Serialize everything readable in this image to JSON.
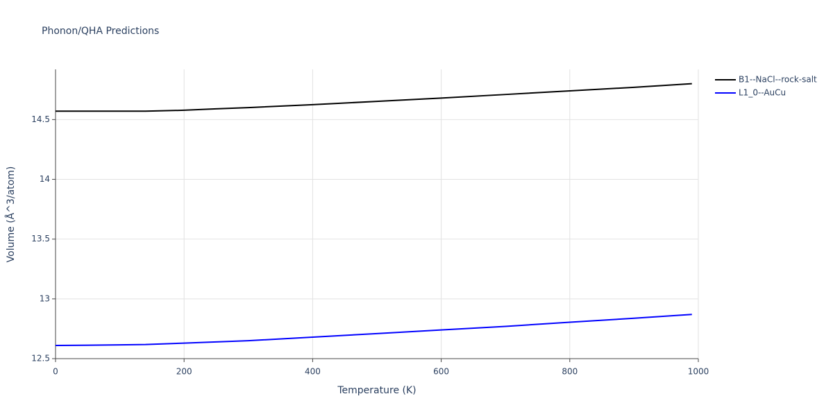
{
  "chart_data": {
    "type": "line",
    "title": "Phonon/QHA Predictions",
    "x_label": "Temperature (K)",
    "y_label": "Volume (Å^3/atom)",
    "x": [
      0,
      100,
      140,
      200,
      250,
      300,
      400,
      500,
      600,
      700,
      800,
      900,
      990
    ],
    "series": [
      {
        "name": "B1--NaCl--rock-salt",
        "color": "#000000",
        "values": [
          14.57,
          14.57,
          14.57,
          14.578,
          14.59,
          14.6,
          14.625,
          14.652,
          14.68,
          14.71,
          14.74,
          14.77,
          14.8
        ]
      },
      {
        "name": "L1_0--AuCu",
        "color": "#0000ff",
        "values": [
          12.61,
          12.615,
          12.618,
          12.63,
          12.64,
          12.65,
          12.68,
          12.71,
          12.74,
          12.77,
          12.805,
          12.838,
          12.87
        ]
      }
    ],
    "xlim": [
      0,
      1000
    ],
    "xticks": [
      0,
      200,
      400,
      600,
      800,
      1000
    ],
    "ylim": [
      12.5,
      14.92
    ],
    "yticks": [
      12.5,
      13,
      13.5,
      14,
      14.5
    ],
    "grid": true,
    "legend": "right"
  }
}
